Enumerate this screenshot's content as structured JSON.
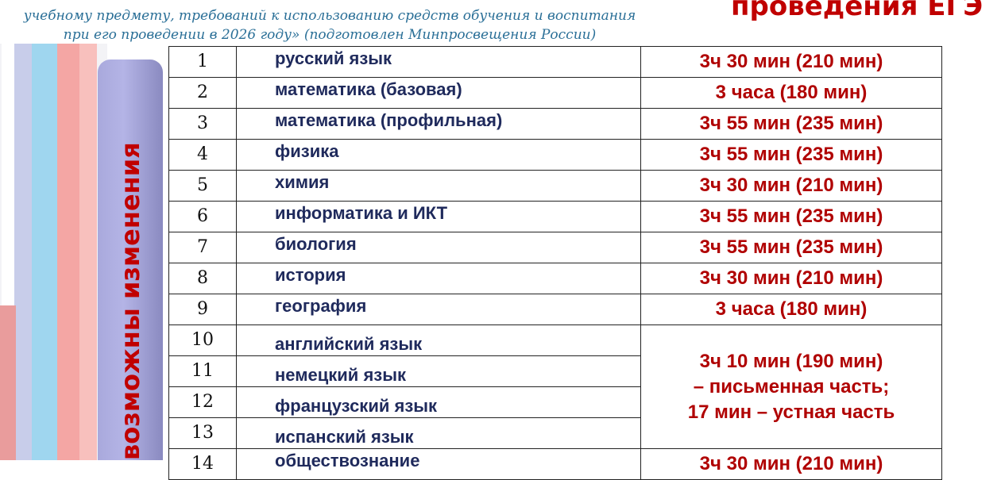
{
  "header": {
    "subtitle_lines": [
      "учебному предмету, требований к использованию средств обучения и воспитания",
      "при его проведении в 2026 году» (подготовлен Минпросвещения России)"
    ],
    "title": "проведения ЕГЭ"
  },
  "side_label": "возможны изменения",
  "colors": {
    "accent_red": "#c00000",
    "subject_navy": "#1f2a5c",
    "subtitle_blue": "#2a6f97",
    "side_bar": "#b4b4e6"
  },
  "rows": [
    {
      "n": "1",
      "subject": "русский язык",
      "time": "3ч 30 мин (210 мин)"
    },
    {
      "n": "2",
      "subject": "математика (базовая)",
      "time": "3 часа (180 мин)"
    },
    {
      "n": "3",
      "subject": "математика (профильная)",
      "time": "3ч 55 мин (235 мин)"
    },
    {
      "n": "4",
      "subject": "физика",
      "time": "3ч 55 мин (235 мин)"
    },
    {
      "n": "5",
      "subject": "химия",
      "time": "3ч 30 мин (210 мин)"
    },
    {
      "n": "6",
      "subject": "информатика и ИКТ",
      "time": "3ч 55 мин (235 мин)"
    },
    {
      "n": "7",
      "subject": "биология",
      "time": "3ч 55 мин (235 мин)"
    },
    {
      "n": "8",
      "subject": "история",
      "time": "3ч 30 мин (210 мин)"
    },
    {
      "n": "9",
      "subject": "география",
      "time": "3 часа (180 мин)"
    },
    {
      "n": "10",
      "subject": "английский язык"
    },
    {
      "n": "11",
      "subject": "немецкий язык"
    },
    {
      "n": "12",
      "subject": "французский язык"
    },
    {
      "n": "13",
      "subject": "испанский язык"
    },
    {
      "n": "14",
      "subject": "обществознание",
      "time": "3ч 30 мин (210 мин)"
    }
  ],
  "languages_time": [
    "3ч 10 мин (190 мин)",
    "– письменная часть;",
    "17 мин – устная часть"
  ]
}
